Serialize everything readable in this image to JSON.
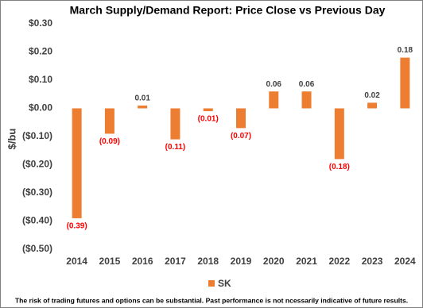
{
  "chart_data": {
    "type": "bar",
    "title": "March Supply/Demand Report: Price Close vs Previous Day",
    "y_label": "$/bu",
    "categories": [
      "2014",
      "2015",
      "2016",
      "2017",
      "2018",
      "2019",
      "2020",
      "2021",
      "2022",
      "2023",
      "2024"
    ],
    "series": [
      {
        "name": "SK",
        "color": "#ed7d31",
        "values": [
          -0.39,
          -0.09,
          0.01,
          -0.11,
          -0.01,
          -0.07,
          0.06,
          0.06,
          -0.18,
          0.02,
          0.18
        ],
        "value_labels": [
          "(0.39)",
          "(0.09)",
          "0.01",
          "(0.11)",
          "(0.01)",
          "(0.07)",
          "0.06",
          "0.06",
          "(0.18)",
          "0.02",
          "0.18"
        ]
      }
    ],
    "negative_label_color": "#ff0000",
    "positive_label_color": "#404040",
    "ylim": [
      -0.5,
      0.3
    ],
    "yticks": [
      {
        "value": 0.3,
        "label": "$0.30"
      },
      {
        "value": 0.2,
        "label": "$0.20"
      },
      {
        "value": 0.1,
        "label": "$0.10"
      },
      {
        "value": 0,
        "label": "$0.00"
      },
      {
        "value": -0.1,
        "label": "($0.10)"
      },
      {
        "value": -0.2,
        "label": "($0.20)"
      },
      {
        "value": -0.3,
        "label": "($0.30)"
      },
      {
        "value": -0.4,
        "label": "($0.40)"
      },
      {
        "value": -0.5,
        "label": "($0.50)"
      }
    ],
    "legend": "bottom",
    "footnote": "The risk of trading futures and options can be substantial.  Past performance is not ncessarily indicative of future results."
  }
}
